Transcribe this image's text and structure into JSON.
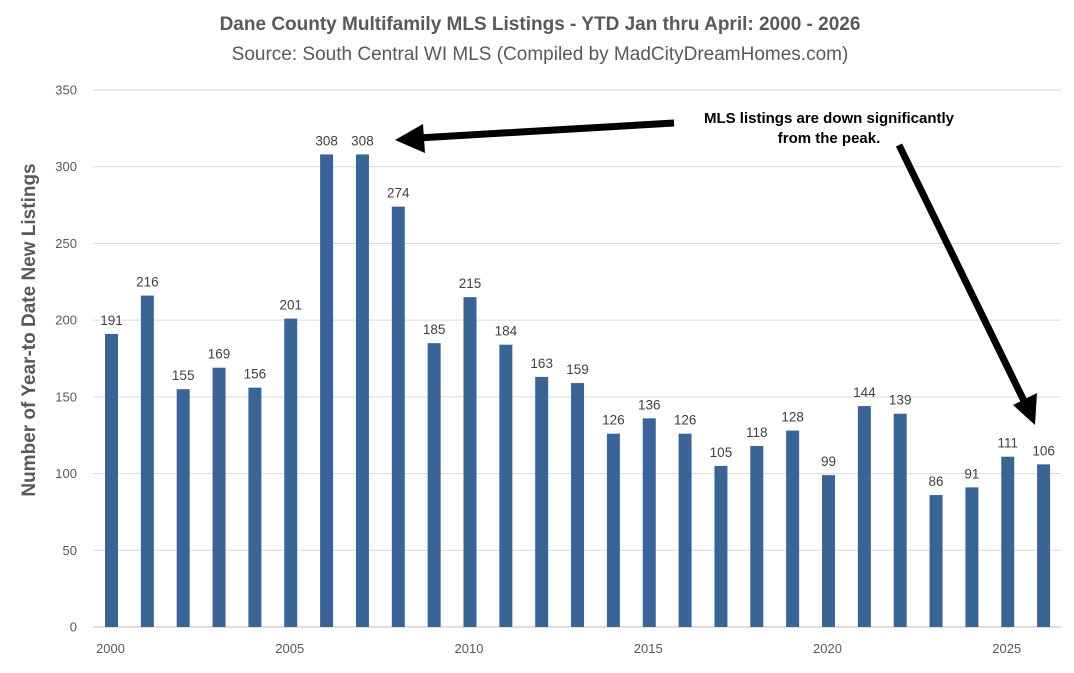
{
  "chart_data": {
    "type": "bar",
    "title": "Dane County Multifamily MLS Listings - YTD Jan thru April: 2000 - 2026",
    "subtitle": "Source: South Central WI MLS (Compiled by MadCityDreamHomes.com)",
    "ylabel": "Number of Year-to Date New Listings",
    "xlabel": "",
    "categories": [
      2000,
      2001,
      2002,
      2003,
      2004,
      2005,
      2006,
      2007,
      2008,
      2009,
      2010,
      2011,
      2012,
      2013,
      2014,
      2015,
      2016,
      2017,
      2018,
      2019,
      2020,
      2021,
      2022,
      2023,
      2024,
      2025,
      2026
    ],
    "values": [
      191,
      216,
      155,
      169,
      156,
      201,
      308,
      308,
      274,
      185,
      215,
      184,
      163,
      159,
      126,
      136,
      126,
      105,
      118,
      128,
      99,
      144,
      139,
      86,
      91,
      111,
      106
    ],
    "x_tick_labels": [
      "2000",
      "2005",
      "2010",
      "2015",
      "2020",
      "2025"
    ],
    "y_ticks": [
      0,
      50,
      100,
      150,
      200,
      250,
      300,
      350
    ],
    "ylim": [
      0,
      350
    ],
    "grid": true,
    "bar_color": "#3A6496",
    "annotation": {
      "line1": "MLS listings are down significantly",
      "line2": "from the peak."
    }
  }
}
